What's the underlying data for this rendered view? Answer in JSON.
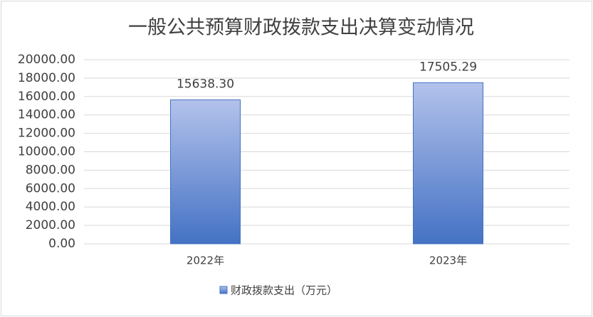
{
  "chart_data": {
    "type": "bar",
    "title": "一般公共预算财政拨款支出决算变动情况",
    "categories": [
      "2022年",
      "2023年"
    ],
    "series": [
      {
        "name": "财政拨款支出（万元）",
        "color": "#4472c4",
        "values": [
          15638.3,
          17505.29
        ],
        "value_labels": [
          "15638.30",
          "17505.29"
        ]
      }
    ],
    "ylim": [
      0,
      20000
    ],
    "yticks": [
      {
        "value": 0,
        "label": "0.00"
      },
      {
        "value": 2000,
        "label": "2000.00"
      },
      {
        "value": 4000,
        "label": "4000.00"
      },
      {
        "value": 6000,
        "label": "6000.00"
      },
      {
        "value": 8000,
        "label": "8000.00"
      },
      {
        "value": 10000,
        "label": "10000.00"
      },
      {
        "value": 12000,
        "label": "12000.00"
      },
      {
        "value": 14000,
        "label": "14000.00"
      },
      {
        "value": 16000,
        "label": "16000.00"
      },
      {
        "value": 18000,
        "label": "18000.00"
      },
      {
        "value": 20000,
        "label": "20000.00"
      }
    ],
    "grid": true,
    "legend": "bottom"
  }
}
